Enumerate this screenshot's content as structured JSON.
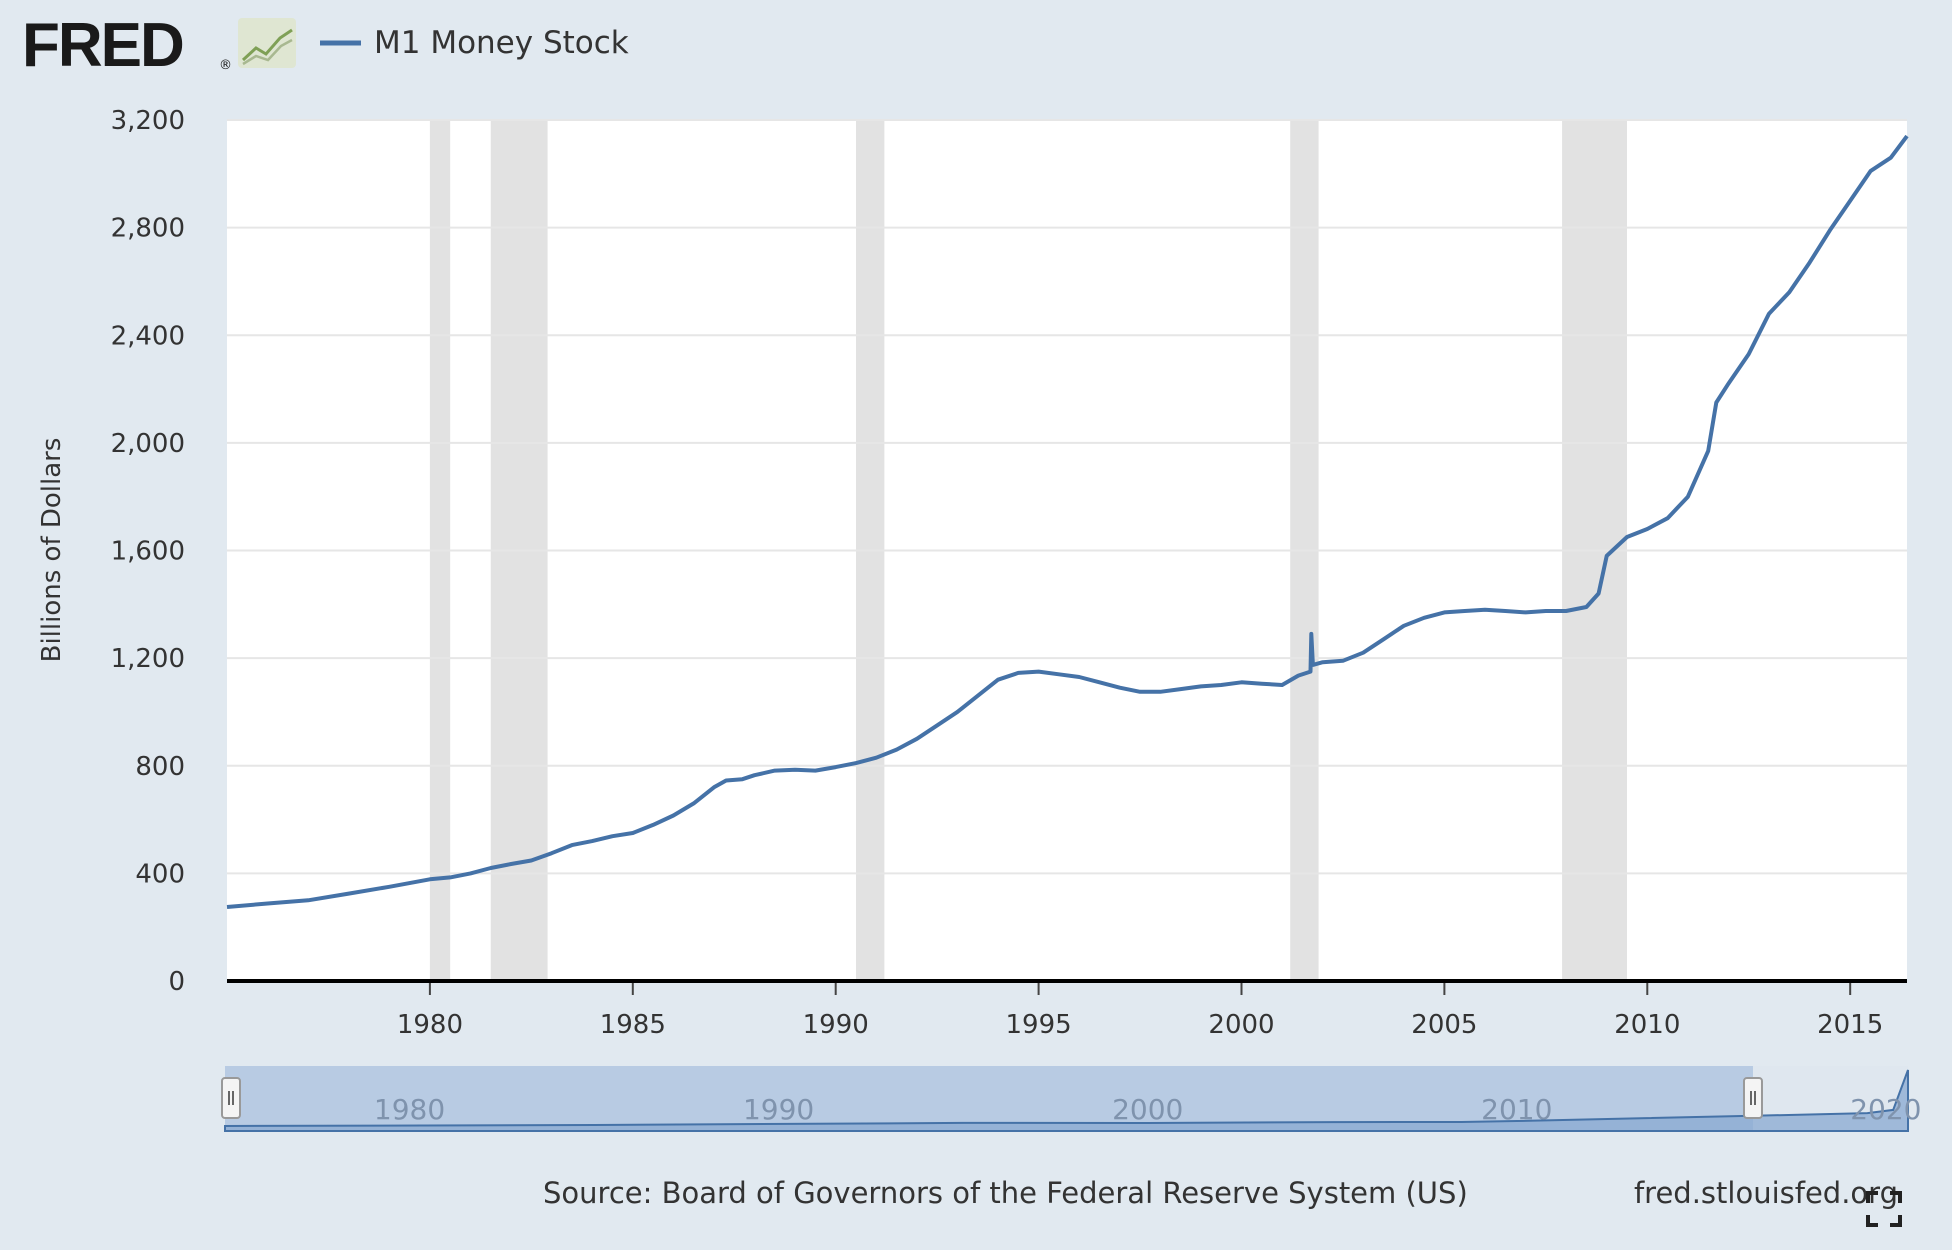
{
  "header": {
    "logo_text": "FRED",
    "logo_registered": "®",
    "logo_icon": "line-chart-icon"
  },
  "chart_data": {
    "type": "line",
    "title": "",
    "series": [
      {
        "name": "M1 Money Stock",
        "color": "#4572a7",
        "points": [
          [
            1975.0,
            275
          ],
          [
            1976.0,
            288
          ],
          [
            1977.0,
            300
          ],
          [
            1978.0,
            325
          ],
          [
            1979.0,
            350
          ],
          [
            1980.0,
            378
          ],
          [
            1980.5,
            385
          ],
          [
            1981.0,
            400
          ],
          [
            1981.5,
            420
          ],
          [
            1982.0,
            435
          ],
          [
            1982.5,
            448
          ],
          [
            1983.0,
            475
          ],
          [
            1983.5,
            505
          ],
          [
            1984.0,
            520
          ],
          [
            1984.5,
            538
          ],
          [
            1985.0,
            550
          ],
          [
            1985.5,
            580
          ],
          [
            1986.0,
            615
          ],
          [
            1986.5,
            660
          ],
          [
            1987.0,
            720
          ],
          [
            1987.3,
            745
          ],
          [
            1987.7,
            750
          ],
          [
            1988.0,
            765
          ],
          [
            1988.5,
            782
          ],
          [
            1989.0,
            785
          ],
          [
            1989.5,
            782
          ],
          [
            1990.0,
            795
          ],
          [
            1990.5,
            810
          ],
          [
            1991.0,
            830
          ],
          [
            1991.5,
            860
          ],
          [
            1992.0,
            900
          ],
          [
            1992.5,
            950
          ],
          [
            1993.0,
            1000
          ],
          [
            1993.5,
            1060
          ],
          [
            1994.0,
            1120
          ],
          [
            1994.5,
            1145
          ],
          [
            1995.0,
            1150
          ],
          [
            1995.5,
            1140
          ],
          [
            1996.0,
            1130
          ],
          [
            1996.5,
            1110
          ],
          [
            1997.0,
            1090
          ],
          [
            1997.5,
            1075
          ],
          [
            1998.0,
            1075
          ],
          [
            1998.5,
            1085
          ],
          [
            1999.0,
            1095
          ],
          [
            1999.5,
            1100
          ],
          [
            2000.0,
            1110
          ],
          [
            2000.5,
            1105
          ],
          [
            2001.0,
            1100
          ],
          [
            2001.4,
            1135
          ],
          [
            2001.7,
            1150
          ],
          [
            2001.72,
            1290
          ],
          [
            2001.76,
            1175
          ],
          [
            2002.0,
            1185
          ],
          [
            2002.5,
            1190
          ],
          [
            2003.0,
            1220
          ],
          [
            2003.5,
            1270
          ],
          [
            2004.0,
            1320
          ],
          [
            2004.5,
            1350
          ],
          [
            2005.0,
            1370
          ],
          [
            2005.5,
            1375
          ],
          [
            2006.0,
            1380
          ],
          [
            2006.5,
            1375
          ],
          [
            2007.0,
            1370
          ],
          [
            2007.5,
            1375
          ],
          [
            2008.0,
            1375
          ],
          [
            2008.5,
            1390
          ],
          [
            2008.8,
            1440
          ],
          [
            2009.0,
            1580
          ],
          [
            2009.5,
            1650
          ],
          [
            2010.0,
            1680
          ],
          [
            2010.5,
            1720
          ],
          [
            2011.0,
            1800
          ],
          [
            2011.5,
            1970
          ],
          [
            2011.7,
            2150
          ],
          [
            2012.0,
            2220
          ],
          [
            2012.5,
            2330
          ],
          [
            2013.0,
            2480
          ],
          [
            2013.5,
            2560
          ],
          [
            2014.0,
            2670
          ],
          [
            2014.5,
            2790
          ],
          [
            2015.0,
            2900
          ],
          [
            2015.5,
            3010
          ],
          [
            2016.0,
            3060
          ],
          [
            2016.4,
            3140
          ]
        ]
      }
    ],
    "xlim": [
      1975.0,
      2016.4
    ],
    "ylim": [
      0,
      3200
    ],
    "yticks": [
      0,
      400,
      800,
      1200,
      1600,
      2000,
      2400,
      2800,
      3200
    ],
    "ytick_labels": [
      "0",
      "400",
      "800",
      "1,200",
      "1,600",
      "2,000",
      "2,400",
      "2,800",
      "3,200"
    ],
    "xticks": [
      1980,
      1985,
      1990,
      1995,
      2000,
      2005,
      2010,
      2015
    ],
    "xtick_labels": [
      "1980",
      "1985",
      "1990",
      "1995",
      "2000",
      "2005",
      "2010",
      "2015"
    ],
    "xlabel": "",
    "ylabel": "Billions of Dollars",
    "grid": true,
    "legend": "top-left",
    "recessions": [
      [
        1980.0,
        1980.5
      ],
      [
        1981.5,
        1982.9
      ],
      [
        1990.5,
        1991.2
      ],
      [
        2001.2,
        2001.9
      ],
      [
        2007.9,
        2009.5
      ]
    ],
    "navigator": {
      "range": [
        1975.0,
        2020.6
      ],
      "selected": [
        1975.0,
        2016.4
      ],
      "labels": [
        "1980",
        "1990",
        "2000",
        "2010",
        "2020"
      ],
      "label_years": [
        1980,
        1990,
        2000,
        2010,
        2020
      ],
      "points": [
        [
          1975.0,
          275
        ],
        [
          1985.0,
          550
        ],
        [
          1995.0,
          1150
        ],
        [
          2000.0,
          1110
        ],
        [
          2005.0,
          1370
        ],
        [
          2008.5,
          1390
        ],
        [
          2010.0,
          1680
        ],
        [
          2016.4,
          3140
        ],
        [
          2019.5,
          3900
        ],
        [
          2020.2,
          4800
        ],
        [
          2020.6,
          16000
        ]
      ],
      "ymax": 16000
    },
    "source": "Source: Board of Governors of the Federal Reserve System (US)",
    "site": "fred.stlouisfed.org"
  },
  "colors": {
    "background": "#e1e9f0",
    "plot_bg": "#ffffff",
    "line": "#4572a7",
    "recession": "#e2e2e2",
    "grid": "#e6e6e6",
    "navigator_fill": "#a9bedc",
    "navigator_selected": "#b7cae3"
  }
}
